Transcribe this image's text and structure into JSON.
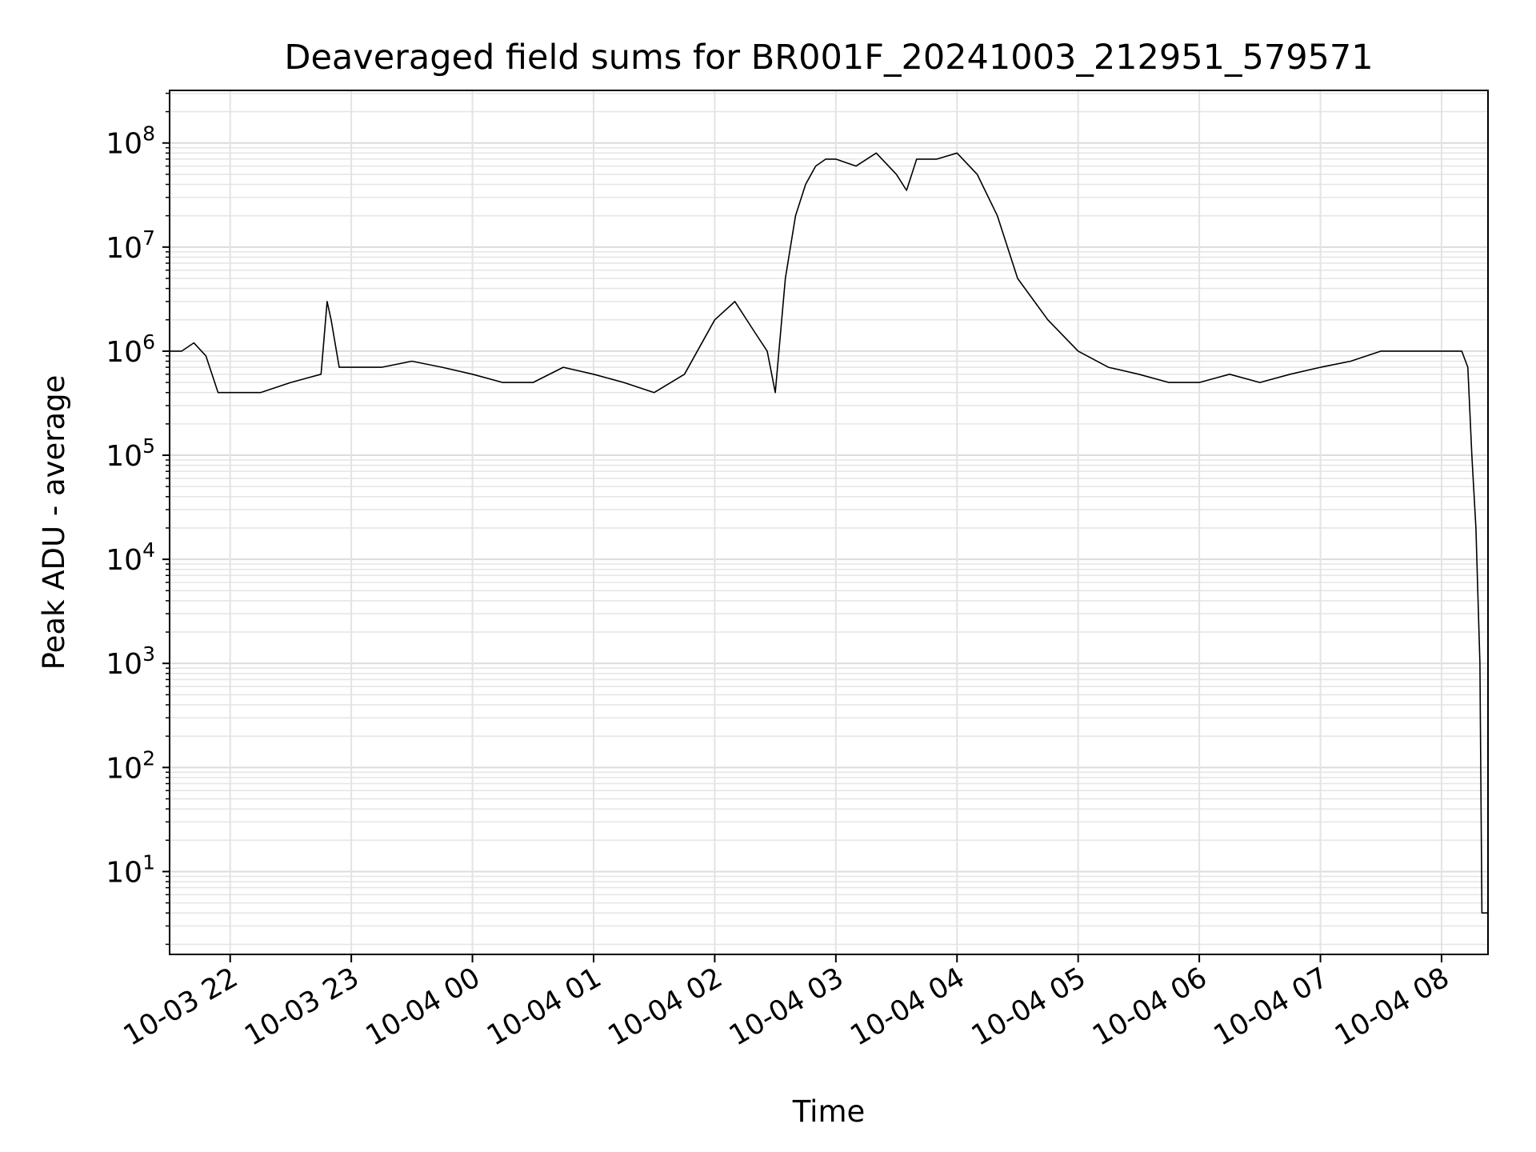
{
  "chart_data": {
    "type": "line",
    "title": "Deaveraged field sums for BR001F_20241003_212951_579571",
    "xlabel": "Time",
    "ylabel": "Peak ADU - average",
    "yscale": "log",
    "ylim": [
      1.6,
      320000000
    ],
    "xlim": [
      "2024-10-03 21:30",
      "2024-10-04 08:23"
    ],
    "grid": true,
    "line_color": "#000000",
    "x_tick_labels": [
      "10-03 22",
      "10-03 23",
      "10-04 00",
      "10-04 01",
      "10-04 02",
      "10-04 03",
      "10-04 04",
      "10-04 05",
      "10-04 06",
      "10-04 07",
      "10-04 08"
    ],
    "x_tick_values": [
      "2024-10-03 22:00",
      "2024-10-03 23:00",
      "2024-10-04 00:00",
      "2024-10-04 01:00",
      "2024-10-04 02:00",
      "2024-10-04 03:00",
      "2024-10-04 04:00",
      "2024-10-04 05:00",
      "2024-10-04 06:00",
      "2024-10-04 07:00",
      "2024-10-04 08:00"
    ],
    "y_tick_labels": [
      {
        "base": "10",
        "exp": "1",
        "value": 10
      },
      {
        "base": "10",
        "exp": "2",
        "value": 100
      },
      {
        "base": "10",
        "exp": "3",
        "value": 1000
      },
      {
        "base": "10",
        "exp": "4",
        "value": 10000
      },
      {
        "base": "10",
        "exp": "5",
        "value": 100000
      },
      {
        "base": "10",
        "exp": "6",
        "value": 1000000
      },
      {
        "base": "10",
        "exp": "7",
        "value": 10000000
      },
      {
        "base": "10",
        "exp": "8",
        "value": 100000000
      }
    ],
    "series": [
      {
        "x": [
          "2024-10-03 21:30",
          "2024-10-03 21:36",
          "2024-10-03 21:42",
          "2024-10-03 21:48",
          "2024-10-03 21:54",
          "2024-10-03 22:00",
          "2024-10-03 22:15",
          "2024-10-03 22:30",
          "2024-10-03 22:45",
          "2024-10-03 22:48",
          "2024-10-03 22:50",
          "2024-10-03 22:54",
          "2024-10-03 23:00",
          "2024-10-03 23:15",
          "2024-10-03 23:30",
          "2024-10-03 23:45",
          "2024-10-04 00:00",
          "2024-10-04 00:15",
          "2024-10-04 00:30",
          "2024-10-04 00:45",
          "2024-10-04 01:00",
          "2024-10-04 01:15",
          "2024-10-04 01:30",
          "2024-10-04 01:45",
          "2024-10-04 02:00",
          "2024-10-04 02:10",
          "2024-10-04 02:20",
          "2024-10-04 02:26",
          "2024-10-04 02:30",
          "2024-10-04 02:35",
          "2024-10-04 02:40",
          "2024-10-04 02:45",
          "2024-10-04 02:50",
          "2024-10-04 02:55",
          "2024-10-04 03:00",
          "2024-10-04 03:10",
          "2024-10-04 03:20",
          "2024-10-04 03:30",
          "2024-10-04 03:35",
          "2024-10-04 03:40",
          "2024-10-04 03:50",
          "2024-10-04 04:00",
          "2024-10-04 04:10",
          "2024-10-04 04:20",
          "2024-10-04 04:30",
          "2024-10-04 04:45",
          "2024-10-04 05:00",
          "2024-10-04 05:15",
          "2024-10-04 05:30",
          "2024-10-04 05:45",
          "2024-10-04 06:00",
          "2024-10-04 06:15",
          "2024-10-04 06:30",
          "2024-10-04 06:45",
          "2024-10-04 07:00",
          "2024-10-04 07:15",
          "2024-10-04 07:30",
          "2024-10-04 07:45",
          "2024-10-04 08:00",
          "2024-10-04 08:10",
          "2024-10-04 08:13",
          "2024-10-04 08:15",
          "2024-10-04 08:17",
          "2024-10-04 08:19",
          "2024-10-04 08:20",
          "2024-10-04 08:21",
          "2024-10-04 08:23"
        ],
        "y": [
          1000000,
          1000000,
          1200000,
          900000,
          400000,
          400000,
          400000,
          500000,
          600000,
          3000000,
          2000000,
          700000,
          700000,
          700000,
          800000,
          700000,
          600000,
          500000,
          500000,
          700000,
          600000,
          500000,
          400000,
          600000,
          2000000,
          3000000,
          1500000,
          1000000,
          400000,
          5000000,
          20000000,
          40000000,
          60000000,
          70000000,
          70000000,
          60000000,
          80000000,
          50000000,
          35000000,
          70000000,
          70000000,
          80000000,
          50000000,
          20000000,
          5000000,
          2000000,
          1000000,
          700000,
          600000,
          500000,
          500000,
          600000,
          500000,
          600000,
          700000,
          800000,
          1000000,
          1000000,
          1000000,
          1000000,
          700000,
          100000,
          20000,
          1000,
          4,
          4,
          4
        ]
      }
    ]
  }
}
